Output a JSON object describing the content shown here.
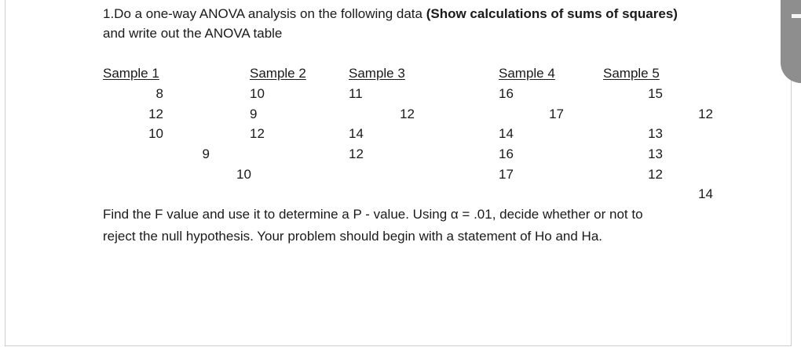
{
  "question": {
    "line1_plain": "1.Do a one-way ANOVA analysis on the following data ",
    "line1_bold": "(Show calculations of sums of squares)",
    "line2": "and write out the ANOVA table"
  },
  "table": {
    "headers": [
      "Sample 1",
      "Sample 2",
      "Sample 3",
      "Sample 4",
      "Sample 5"
    ],
    "cells": {
      "r1": [
        "8",
        "10",
        "11",
        "16",
        "15"
      ],
      "r2": [
        "12",
        "9",
        "12",
        "17",
        "12"
      ],
      "r3": [
        "10",
        "12",
        "14",
        "14",
        "13"
      ],
      "r4": [
        "9",
        "12",
        "16",
        "13"
      ],
      "r5": [
        "10",
        "17",
        "12"
      ],
      "r6": [
        "14"
      ]
    }
  },
  "instructions": {
    "line1": "Find the F value and use it to determine a P - value. Using α = .01, decide whether or not to",
    "line2": "reject the null hypothesis. Your problem should begin with a statement of Ho and Ha."
  },
  "colors": {
    "side_tab": "#8e8e8e",
    "border": "#cfcfcf",
    "text": "#1a1a1a"
  }
}
